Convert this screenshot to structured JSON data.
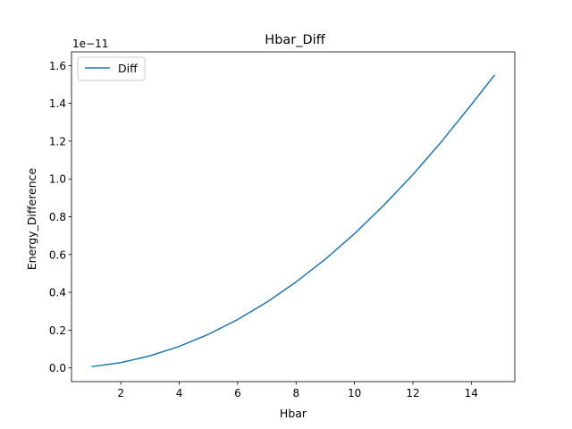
{
  "chart_data": {
    "type": "line",
    "title": "Hbar_Diff",
    "xlabel": "Hbar",
    "ylabel": "Energy_Difference",
    "y_offset_label": "1e−11",
    "xlim": [
      0.31,
      15.49
    ],
    "ylim": [
      -0.0725,
      1.6725
    ],
    "x_ticks": [
      2,
      4,
      6,
      8,
      10,
      12,
      14
    ],
    "y_ticks": [
      0.0,
      0.2,
      0.4,
      0.6,
      0.8,
      1.0,
      1.2,
      1.4,
      1.6
    ],
    "y_tick_labels": [
      "0.0",
      "0.2",
      "0.4",
      "0.6",
      "0.8",
      "1.0",
      "1.2",
      "1.4",
      "1.6"
    ],
    "grid": false,
    "legend_position": "top-left",
    "series": [
      {
        "name": "Diff",
        "color": "#1f77b4",
        "x": [
          1,
          2,
          3,
          4,
          5,
          6,
          7,
          8,
          9,
          10,
          11,
          12,
          13,
          14,
          14.8
        ],
        "y": [
          0.007,
          0.028,
          0.064,
          0.114,
          0.178,
          0.256,
          0.348,
          0.455,
          0.575,
          0.71,
          0.86,
          1.023,
          1.201,
          1.393,
          1.55
        ]
      }
    ]
  }
}
